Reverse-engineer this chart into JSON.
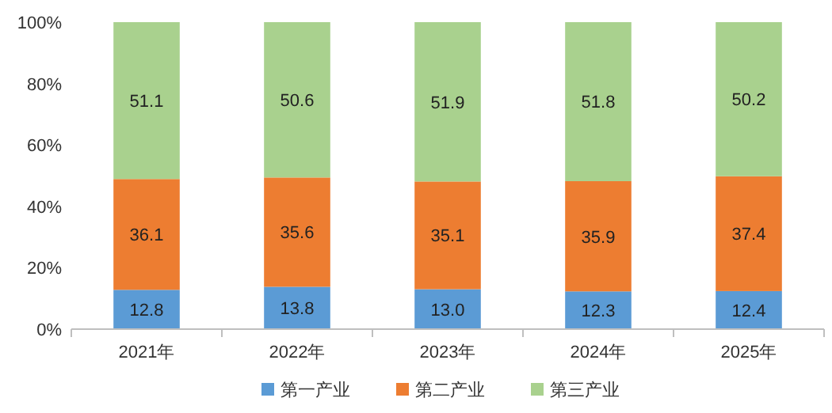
{
  "chart_data": {
    "type": "bar",
    "stacked": true,
    "categories": [
      "2021年",
      "2022年",
      "2023年",
      "2024年",
      "2025年"
    ],
    "series": [
      {
        "name": "第一产业",
        "color": "#5b9bd5",
        "values": [
          12.8,
          13.8,
          13.0,
          12.3,
          12.4
        ],
        "value_labels": [
          "12.8",
          "13.8",
          "13.0",
          "12.3",
          "12.4"
        ]
      },
      {
        "name": "第二产业",
        "color": "#ed7d31",
        "values": [
          36.1,
          35.6,
          35.1,
          35.9,
          37.4
        ],
        "value_labels": [
          "36.1",
          "35.6",
          "35.1",
          "35.9",
          "37.4"
        ]
      },
      {
        "name": "第三产业",
        "color": "#a9d18e",
        "values": [
          51.1,
          50.6,
          51.9,
          51.8,
          50.2
        ],
        "value_labels": [
          "51.1",
          "50.6",
          "51.9",
          "51.8",
          "50.2"
        ]
      }
    ],
    "ylim": [
      0,
      100
    ],
    "yticks": [
      {
        "value": 0,
        "label": "0%"
      },
      {
        "value": 20,
        "label": "20%"
      },
      {
        "value": 40,
        "label": "40%"
      },
      {
        "value": 60,
        "label": "60%"
      },
      {
        "value": 80,
        "label": "80%"
      },
      {
        "value": 100,
        "label": "100%"
      }
    ],
    "legend": "bottom",
    "grid": false
  }
}
